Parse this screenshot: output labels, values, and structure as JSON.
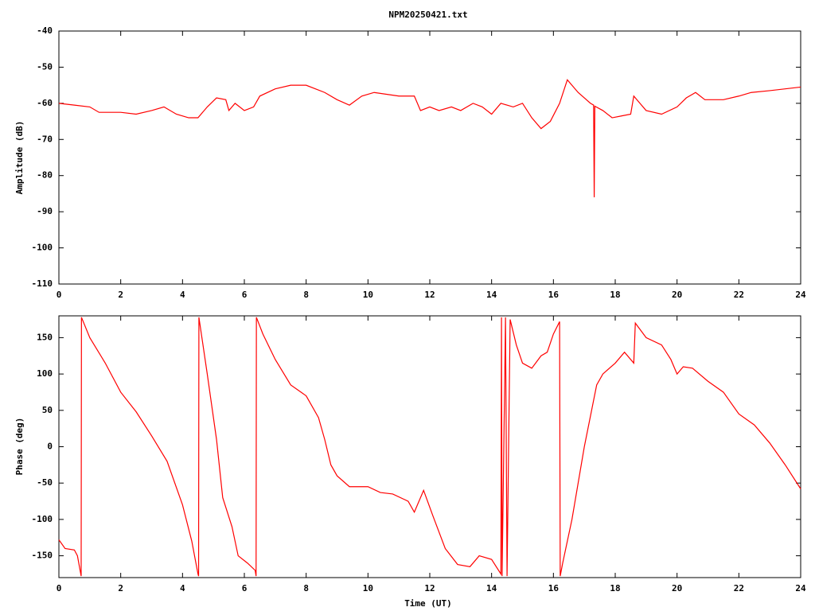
{
  "chart_data": [
    {
      "type": "line",
      "title": "NPM20250421.txt",
      "ylabel": "Amplitude (dB)",
      "color": "#ff0000",
      "xlim": [
        0,
        24
      ],
      "xticks": [
        0,
        2,
        4,
        6,
        8,
        10,
        12,
        14,
        16,
        18,
        20,
        22,
        24
      ],
      "ylim": [
        -110,
        -40
      ],
      "yticks": [
        -40,
        -50,
        -60,
        -70,
        -80,
        -90,
        -100,
        -110
      ],
      "x": [
        0,
        0.5,
        1,
        1.3,
        2,
        2.5,
        3,
        3.4,
        3.8,
        4.2,
        4.5,
        4.8,
        5.1,
        5.4,
        5.5,
        5.7,
        6,
        6.3,
        6.5,
        7,
        7.5,
        8,
        8.3,
        8.6,
        9,
        9.4,
        9.8,
        10.2,
        11,
        11.5,
        11.7,
        12,
        12.3,
        12.7,
        13,
        13.4,
        13.7,
        14,
        14.3,
        14.7,
        15,
        15.3,
        15.6,
        15.9,
        16.2,
        16.45,
        16.8,
        17.2,
        17.3,
        17.32,
        17.34,
        17.6,
        17.9,
        18.2,
        18.5,
        18.6,
        18.8,
        19,
        19.5,
        20,
        20.3,
        20.6,
        20.9,
        21.5,
        22,
        22.4,
        23,
        24
      ],
      "values": [
        -60,
        -60.5,
        -61,
        -62.5,
        -62.5,
        -63,
        -62,
        -61,
        -63,
        -64,
        -64,
        -61,
        -58.5,
        -59,
        -62,
        -60,
        -62,
        -61,
        -58,
        -56,
        -55,
        -55,
        -56,
        -57,
        -59,
        -60.5,
        -58,
        -57,
        -58,
        -58,
        -62,
        -61,
        -62,
        -61,
        -62,
        -60,
        -61,
        -63,
        -60,
        -61,
        -60,
        -64,
        -67,
        -65,
        -60,
        -53.5,
        -57,
        -60,
        -60.5,
        -86,
        -60.8,
        -62,
        -64,
        -63.5,
        -63,
        -58,
        -60,
        -62,
        -63,
        -61,
        -58.5,
        -57,
        -59,
        -59,
        -58,
        -57,
        -56.5,
        -55.5
      ]
    },
    {
      "type": "line",
      "xlabel": "Time (UT)",
      "ylabel": "Phase (deg)",
      "color": "#ff0000",
      "xlim": [
        0,
        24
      ],
      "xticks": [
        0,
        2,
        4,
        6,
        8,
        10,
        12,
        14,
        16,
        18,
        20,
        22,
        24
      ],
      "ylim": [
        -180,
        180
      ],
      "yticks": [
        150,
        100,
        50,
        0,
        -50,
        -100,
        -150
      ],
      "x": [
        0,
        0.2,
        0.5,
        0.6,
        0.72,
        0.73,
        1,
        1.5,
        2,
        2.5,
        3,
        3.5,
        4,
        4.3,
        4.5,
        4.52,
        4.53,
        4.8,
        5.1,
        5.3,
        5.6,
        5.8,
        6.1,
        6.35,
        6.38,
        6.39,
        6.6,
        7,
        7.5,
        8,
        8.4,
        8.6,
        8.8,
        9,
        9.4,
        10,
        10.4,
        10.8,
        11.3,
        11.5,
        11.8,
        12.1,
        12.5,
        12.9,
        13.3,
        13.6,
        14,
        14.3,
        14.32,
        14.34,
        14.45,
        14.5,
        14.6,
        14.8,
        15,
        15.3,
        15.6,
        15.8,
        16,
        16.2,
        16.22,
        16.3,
        16.6,
        17,
        17.4,
        17.6,
        18,
        18.3,
        18.6,
        18.65,
        19,
        19.5,
        19.8,
        20,
        20.2,
        20.5,
        21,
        21.5,
        22,
        22.5,
        23,
        23.5,
        24
      ],
      "values": [
        -128,
        -140,
        -142,
        -150,
        -178,
        178,
        150,
        115,
        75,
        48,
        15,
        -20,
        -80,
        -130,
        -175,
        -178,
        178,
        100,
        10,
        -70,
        -110,
        -150,
        -160,
        -170,
        -178,
        178,
        155,
        120,
        85,
        70,
        40,
        10,
        -25,
        -40,
        -55,
        -55,
        -63,
        -65,
        -75,
        -90,
        -60,
        -95,
        -140,
        -162,
        -165,
        -150,
        -155,
        -175,
        178,
        -178,
        178,
        -178,
        175,
        140,
        115,
        108,
        125,
        130,
        155,
        172,
        -178,
        -160,
        -100,
        0,
        85,
        100,
        115,
        130,
        115,
        170,
        150,
        140,
        120,
        100,
        110,
        108,
        90,
        75,
        45,
        30,
        5,
        -25,
        -58
      ]
    }
  ]
}
